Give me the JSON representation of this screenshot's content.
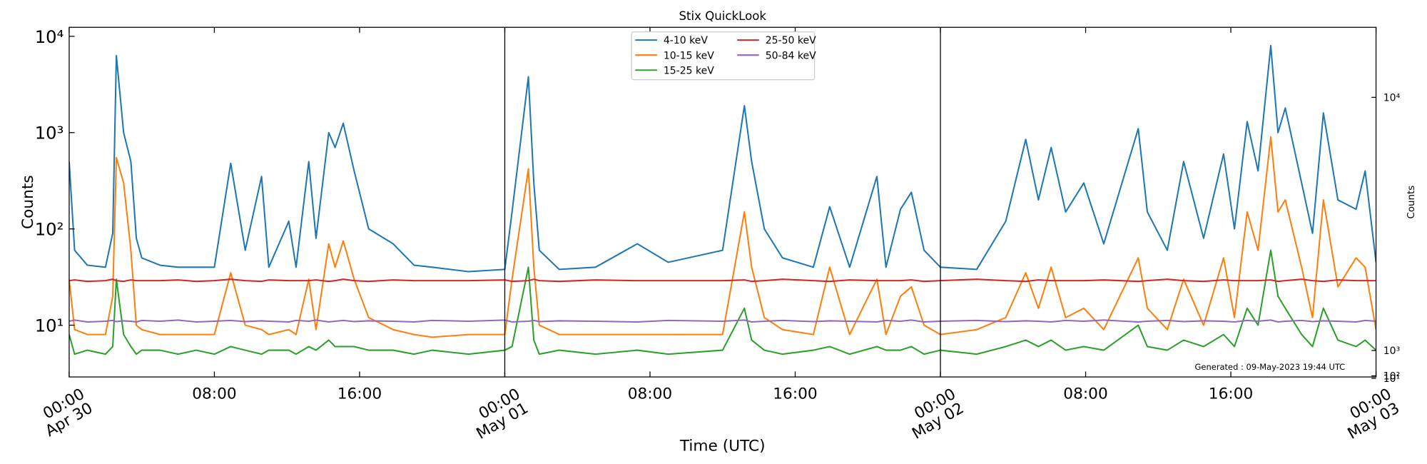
{
  "chart_data": {
    "type": "line",
    "title": "Stix QuickLook",
    "x_label": "Time (UTC)",
    "y_label": "Counts",
    "y2_label": "Counts",
    "annotation": "Generated : 09-May-2023 19:44 UTC",
    "log_y": true,
    "legend": "upper center",
    "x": [
      0,
      0.3,
      1,
      2,
      2.4,
      2.6,
      3.0,
      3.4,
      3.7,
      4,
      5,
      6,
      7,
      8,
      8.9,
      9.7,
      10.6,
      11,
      12.1,
      12.5,
      13.2,
      13.6,
      14.3,
      14.65,
      15.1,
      15.7,
      16.5,
      17.85,
      19,
      20,
      22,
      24,
      24.4,
      25.3,
      25.6,
      25.9,
      27,
      29,
      31.3,
      33,
      36,
      37.2,
      37.6,
      38.3,
      39.3,
      41,
      41.9,
      43,
      44.5,
      45,
      45.8,
      46.4,
      47.1,
      48,
      50,
      51.6,
      52.7,
      53.4,
      54.1,
      54.9,
      55.9,
      57,
      58.9,
      59.4,
      60.5,
      61.4,
      62.5,
      63.6,
      64.2,
      64.9,
      65.5,
      66.2,
      66.6,
      67,
      67.9,
      68.5,
      69.1,
      69.9,
      70.9,
      71.4,
      72
    ],
    "series": [
      {
        "name": "4-10 keV",
        "color": "#1f77b4",
        "values": [
          500,
          60,
          42,
          40,
          90,
          6300,
          1000,
          500,
          80,
          50,
          42,
          40,
          40,
          40,
          480,
          60,
          350,
          40,
          120,
          40,
          500,
          80,
          1000,
          700,
          1250,
          400,
          100,
          70,
          42,
          40,
          36,
          38,
          150,
          3800,
          300,
          60,
          38,
          40,
          70,
          45,
          60,
          1900,
          500,
          100,
          50,
          40,
          170,
          40,
          350,
          40,
          160,
          240,
          60,
          40,
          38,
          120,
          850,
          200,
          700,
          150,
          300,
          70,
          1100,
          150,
          60,
          500,
          80,
          600,
          100,
          1300,
          400,
          8000,
          1000,
          1800,
          300,
          90,
          1600,
          200,
          160,
          400,
          45
        ]
      },
      {
        "name": "10-15 keV",
        "color": "#ff7f0e",
        "values": [
          30,
          9,
          8,
          8,
          20,
          550,
          300,
          60,
          10,
          9,
          8,
          8,
          8,
          8,
          35,
          10,
          9,
          8,
          9,
          8,
          30,
          9,
          70,
          40,
          75,
          30,
          12,
          9,
          8,
          7.5,
          8,
          8,
          30,
          420,
          40,
          10,
          8,
          8,
          8,
          8,
          8,
          150,
          40,
          12,
          9,
          8,
          40,
          8,
          30,
          8,
          20,
          25,
          10,
          8,
          9,
          12,
          35,
          15,
          40,
          12,
          15,
          9,
          50,
          15,
          9,
          30,
          10,
          50,
          12,
          150,
          60,
          900,
          150,
          200,
          40,
          12,
          200,
          25,
          50,
          40,
          9
        ]
      },
      {
        "name": "15-25 keV",
        "color": "#2ca02c",
        "values": [
          8,
          5,
          5.5,
          5,
          6,
          30,
          8,
          6,
          5,
          5.5,
          5.5,
          5,
          5.5,
          5,
          6,
          5.5,
          5,
          5.5,
          5.5,
          5,
          6,
          5.5,
          7,
          6,
          6,
          6,
          5.5,
          5.5,
          5,
          5.5,
          5,
          5.5,
          6,
          40,
          7,
          5,
          5.5,
          5,
          5.5,
          5,
          5.5,
          15,
          7,
          5.5,
          5,
          5.5,
          6,
          5,
          6,
          5.5,
          5.5,
          6,
          5,
          5.5,
          5,
          6,
          7,
          6,
          7,
          5.5,
          6,
          5.5,
          10,
          6,
          5.5,
          7,
          6,
          8,
          6,
          15,
          10,
          60,
          20,
          15,
          8,
          6,
          15,
          7,
          6,
          7,
          5.5
        ]
      },
      {
        "name": "25-50 keV",
        "color": "#d62728",
        "values": [
          29,
          29.5,
          28.5,
          29,
          30,
          29,
          28.5,
          29.5,
          29,
          29,
          29,
          29.5,
          28.5,
          29,
          30,
          29,
          28.5,
          29.5,
          29,
          29,
          29,
          29.5,
          28.5,
          29,
          30,
          29,
          28.5,
          29.5,
          29,
          29,
          29,
          29.5,
          28.5,
          29,
          30,
          29,
          28.5,
          29.5,
          29,
          29,
          29,
          29.5,
          28.5,
          29,
          30,
          29,
          28.5,
          29.5,
          29,
          29,
          29,
          29.5,
          28.5,
          29,
          30,
          29,
          28.5,
          29.5,
          29,
          29,
          29,
          29.5,
          28.5,
          29,
          30,
          29,
          28.5,
          29.5,
          29,
          29,
          29,
          29.5,
          28.5,
          29,
          30,
          29,
          28.5,
          29.5,
          29,
          29,
          29
        ]
      },
      {
        "name": "50-84 keV",
        "color": "#9467bd",
        "values": [
          11,
          11.3,
          10.8,
          11,
          11.2,
          10.9,
          11.1,
          11,
          10.8,
          11.2,
          11,
          11.3,
          10.8,
          11,
          11.2,
          10.9,
          11.1,
          11,
          10.8,
          11.2,
          11,
          11.3,
          10.8,
          11,
          11.2,
          10.9,
          11.1,
          11,
          10.8,
          11.2,
          11,
          11.3,
          10.8,
          11,
          11.2,
          10.9,
          11.1,
          11,
          10.8,
          11.2,
          11,
          11.3,
          10.8,
          11,
          11.2,
          10.9,
          11.1,
          11,
          10.8,
          11.2,
          11,
          11.3,
          10.8,
          11,
          11.2,
          10.9,
          11.1,
          11,
          10.8,
          11.2,
          11,
          11.3,
          10.8,
          11,
          11.2,
          10.9,
          11.1,
          11,
          10.8,
          11.2,
          11,
          11.3,
          10.8,
          11,
          11.2,
          10.9,
          11.1,
          11,
          10.8,
          11.2,
          11
        ]
      }
    ],
    "xlim": [
      0,
      72
    ],
    "xticks": [
      {
        "value": 0,
        "label": "00:00\nApr 30"
      },
      {
        "value": 8,
        "label": "08:00"
      },
      {
        "value": 16,
        "label": "16:00"
      },
      {
        "value": 24,
        "label": "00:00\nMay 01"
      },
      {
        "value": 32,
        "label": "08:00"
      },
      {
        "value": 40,
        "label": "16:00"
      },
      {
        "value": 48,
        "label": "00:00\nMay 02"
      },
      {
        "value": 56,
        "label": "08:00"
      },
      {
        "value": 64,
        "label": "16:00"
      },
      {
        "value": 72,
        "label": "00:00\nMay 03"
      }
    ],
    "ylim": [
      2.9,
      12400
    ],
    "yticks": [
      {
        "value": 10,
        "label": "10¹"
      },
      {
        "value": 100,
        "label": "10²"
      },
      {
        "value": 1000,
        "label": "10³"
      },
      {
        "value": 10000,
        "label": "10⁴"
      }
    ],
    "y2lim": [
      60,
      12490
    ],
    "y2ticks": [
      {
        "value": 10,
        "label": "10¹"
      },
      {
        "value": 100,
        "label": "10²"
      },
      {
        "value": 1000,
        "label": "10³"
      },
      {
        "value": 10000,
        "label": "10⁴"
      }
    ]
  }
}
